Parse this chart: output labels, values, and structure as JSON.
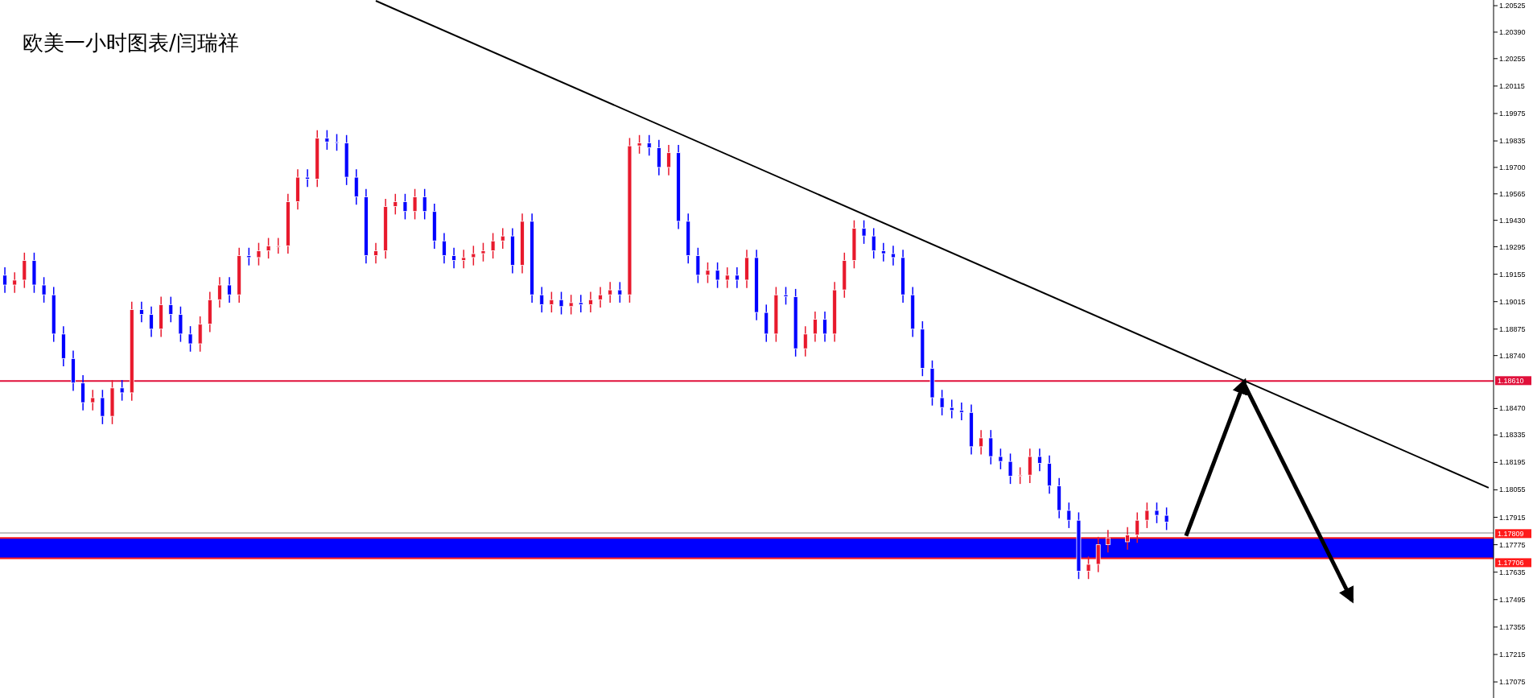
{
  "chart_data": {
    "type": "candlestick",
    "annotations": [
      "欧美一小时图表/闫瑞祥"
    ],
    "categories": [
      null,
      null,
      null,
      null,
      null,
      null,
      null,
      null,
      null,
      null,
      null,
      null,
      null,
      null,
      null,
      null,
      null,
      null,
      null,
      null,
      null,
      null,
      null,
      null,
      null,
      null,
      null,
      null,
      null,
      null,
      null,
      null,
      null,
      null,
      null,
      null,
      null,
      null,
      null,
      null,
      null,
      null,
      null,
      null,
      null,
      null,
      null,
      null,
      null,
      null,
      null,
      null,
      null,
      null,
      null,
      null,
      null,
      null,
      null,
      null,
      null,
      null,
      null,
      null,
      null,
      null,
      null,
      null,
      null,
      null,
      null,
      null,
      null,
      null,
      null,
      null,
      null,
      null,
      null,
      null,
      null,
      null,
      null,
      null,
      null,
      null,
      null,
      null,
      null,
      null,
      null,
      null,
      null,
      null,
      null,
      null,
      null,
      null,
      null,
      null,
      null,
      null,
      null,
      null,
      null,
      null,
      null,
      null,
      null,
      null,
      null,
      null,
      null,
      null,
      null,
      null,
      null,
      null,
      null,
      null,
      null,
      null,
      null,
      null,
      null,
      null,
      null,
      null,
      null,
      null,
      null,
      null,
      null,
      null,
      null,
      null,
      null,
      null,
      null,
      null,
      null,
      null,
      null,
      null,
      null,
      null,
      null,
      null,
      null,
      null,
      null,
      null,
      null
    ],
    "colors": [
      "#0000ff",
      "#e8192c",
      "#e8192c",
      "#0000ff",
      "#0000ff",
      "#0000ff",
      "#0000ff",
      "#0000ff",
      "#0000ff",
      "#e8192c",
      "#0000ff",
      "#e8192c",
      "#0000ff",
      "#e8192c",
      "#0000ff",
      "#0000ff",
      "#e8192c",
      "#0000ff",
      "#0000ff",
      "#0000ff",
      "#e8192c",
      "#e8192c",
      "#e8192c",
      "#0000ff",
      "#e8192c",
      "#0000ff",
      "#e8192c",
      "#e8192c",
      "#e8192c",
      "#e8192c",
      "#e8192c",
      "#0000ff",
      "#e8192c",
      "#0000ff",
      "#0000ff",
      "#0000ff",
      "#0000ff",
      "#0000ff",
      "#e8192c",
      "#e8192c",
      "#e8192c",
      "#0000ff",
      "#e8192c",
      "#0000ff",
      "#0000ff",
      "#0000ff",
      "#0000ff",
      "#e8192c",
      "#e8192c",
      "#e8192c",
      "#e8192c",
      "#e8192c",
      "#0000ff",
      "#e8192c",
      "#0000ff",
      "#0000ff",
      "#e8192c",
      "#0000ff",
      "#e8192c",
      "#0000ff",
      "#e8192c",
      "#e8192c",
      "#e8192c",
      "#0000ff",
      "#e8192c",
      "#e8192c",
      "#0000ff",
      "#0000ff",
      "#e8192c",
      "#0000ff",
      "#0000ff",
      "#0000ff",
      "#e8192c",
      "#0000ff",
      "#e8192c",
      "#0000ff",
      "#e8192c",
      "#0000ff",
      "#0000ff",
      "#e8192c",
      "#0000ff",
      "#0000ff",
      "#e8192c",
      "#e8192c",
      "#0000ff",
      "#e8192c",
      "#e8192c",
      "#e8192c",
      "#0000ff",
      "#0000ff",
      "#0000ff",
      "#0000ff",
      "#0000ff",
      "#0000ff",
      "#0000ff",
      "#0000ff",
      "#0000ff",
      "#0000ff",
      "#0000ff",
      "#0000ff",
      "#e8192c",
      "#0000ff",
      "#0000ff",
      "#0000ff",
      "#e8192c",
      "#e8192c",
      "#0000ff",
      "#0000ff",
      "#0000ff",
      "#0000ff",
      "#0000ff",
      "#e8192c",
      "#e8192c",
      "#e8192c",
      null,
      "#e8192c",
      "#e8192c",
      "#e8192c",
      "#0000ff",
      "#0000ff",
      null,
      null,
      null,
      null,
      null,
      null,
      null,
      null,
      null,
      null,
      null,
      null,
      null,
      null,
      null,
      null,
      null,
      null,
      null,
      null,
      null,
      null,
      null,
      null,
      null,
      null,
      null,
      null,
      null,
      null,
      null,
      null,
      null
    ],
    "ohlc": [
      [
        1.1915,
        1.1919,
        1.1906,
        1.191
      ],
      [
        1.191,
        1.19165,
        1.1906,
        1.19125
      ],
      [
        1.19125,
        1.19265,
        1.19085,
        1.19225
      ],
      [
        1.19225,
        1.19265,
        1.1906,
        1.191
      ],
      [
        1.191,
        1.1914,
        1.1901,
        1.1905
      ],
      [
        1.1905,
        1.1909,
        1.1881,
        1.1885
      ],
      [
        1.1885,
        1.1889,
        1.18685,
        1.18725
      ],
      [
        1.18725,
        1.18765,
        1.1856,
        1.186
      ],
      [
        1.186,
        1.1864,
        1.1846,
        1.185
      ],
      [
        1.185,
        1.18565,
        1.1846,
        1.18525
      ],
      [
        1.18525,
        1.18565,
        1.1839,
        1.1843
      ],
      [
        1.1843,
        1.18615,
        1.1839,
        1.18575
      ],
      [
        1.18575,
        1.18615,
        1.1851,
        1.1855
      ],
      [
        1.1855,
        1.19015,
        1.1851,
        1.18975
      ],
      [
        1.18975,
        1.19015,
        1.1891,
        1.1895
      ],
      [
        1.1895,
        1.1899,
        1.18835,
        1.18875
      ],
      [
        1.18875,
        1.1904,
        1.18835,
        1.19
      ],
      [
        1.19,
        1.1904,
        1.1891,
        1.1895
      ],
      [
        1.1895,
        1.1899,
        1.1881,
        1.1885
      ],
      [
        1.1885,
        1.1889,
        1.1876,
        1.188
      ],
      [
        1.188,
        1.1894,
        1.1876,
        1.189
      ],
      [
        1.189,
        1.19065,
        1.1886,
        1.19025
      ],
      [
        1.19025,
        1.1914,
        1.18985,
        1.191
      ],
      [
        1.191,
        1.1914,
        1.1901,
        1.1905
      ],
      [
        1.1905,
        1.1929,
        1.1901,
        1.1925
      ],
      [
        1.1925,
        1.1929,
        1.192,
        1.1924
      ],
      [
        1.1924,
        1.19315,
        1.192,
        1.19275
      ],
      [
        1.19275,
        1.1934,
        1.19235,
        1.193
      ],
      [
        1.193,
        1.1934,
        1.1926,
        1.193
      ],
      [
        1.193,
        1.19565,
        1.1926,
        1.19525
      ],
      [
        1.19525,
        1.1969,
        1.19485,
        1.1965
      ],
      [
        1.1965,
        1.1969,
        1.196,
        1.1964
      ],
      [
        1.1964,
        1.1989,
        1.196,
        1.1985
      ],
      [
        1.1985,
        1.1989,
        1.1979,
        1.1983
      ],
      [
        1.1983,
        1.1987,
        1.19785,
        1.19825
      ],
      [
        1.19825,
        1.19865,
        1.1961,
        1.1965
      ],
      [
        1.1965,
        1.1969,
        1.1951,
        1.1955
      ],
      [
        1.1955,
        1.1959,
        1.1921,
        1.1925
      ],
      [
        1.1925,
        1.19315,
        1.1921,
        1.19275
      ],
      [
        1.19275,
        1.1954,
        1.19235,
        1.195
      ],
      [
        1.195,
        1.19565,
        1.1946,
        1.19525
      ],
      [
        1.19525,
        1.19565,
        1.19435,
        1.19475
      ],
      [
        1.19475,
        1.1959,
        1.19435,
        1.1955
      ],
      [
        1.1955,
        1.1959,
        1.19435,
        1.19475
      ],
      [
        1.19475,
        1.19515,
        1.19285,
        1.19325
      ],
      [
        1.19325,
        1.19365,
        1.1921,
        1.1925
      ],
      [
        1.1925,
        1.1929,
        1.19185,
        1.19225
      ],
      [
        1.19225,
        1.1928,
        1.19185,
        1.1924
      ],
      [
        1.1924,
        1.193,
        1.192,
        1.1926
      ],
      [
        1.1926,
        1.19315,
        1.1922,
        1.19275
      ],
      [
        1.19275,
        1.19365,
        1.19235,
        1.19325
      ],
      [
        1.19325,
        1.1939,
        1.19285,
        1.1935
      ],
      [
        1.1935,
        1.1939,
        1.1916,
        1.192
      ],
      [
        1.192,
        1.19465,
        1.1916,
        1.19425
      ],
      [
        1.19425,
        1.19465,
        1.1901,
        1.1905
      ],
      [
        1.1905,
        1.1909,
        1.1896,
        1.19
      ],
      [
        1.19,
        1.19065,
        1.1896,
        1.19025
      ],
      [
        1.19025,
        1.19065,
        1.1895,
        1.1899
      ],
      [
        1.1899,
        1.1905,
        1.1895,
        1.1901
      ],
      [
        1.1901,
        1.1905,
        1.1896,
        1.19
      ],
      [
        1.19,
        1.19065,
        1.1896,
        1.19025
      ],
      [
        1.19025,
        1.1909,
        1.18985,
        1.1905
      ],
      [
        1.1905,
        1.19115,
        1.1901,
        1.19075
      ],
      [
        1.19075,
        1.19115,
        1.1901,
        1.1905
      ],
      [
        1.1905,
        1.1985,
        1.1901,
        1.1981
      ],
      [
        1.1981,
        1.19865,
        1.1977,
        1.19825
      ],
      [
        1.19825,
        1.19865,
        1.1976,
        1.198
      ],
      [
        1.198,
        1.1984,
        1.1966,
        1.197
      ],
      [
        1.197,
        1.19815,
        1.1966,
        1.19775
      ],
      [
        1.19775,
        1.19815,
        1.19385,
        1.19425
      ],
      [
        1.19425,
        1.19465,
        1.1921,
        1.1925
      ],
      [
        1.1925,
        1.1929,
        1.1911,
        1.1915
      ],
      [
        1.1915,
        1.19215,
        1.1911,
        1.19175
      ],
      [
        1.19175,
        1.19215,
        1.19085,
        1.19125
      ],
      [
        1.19125,
        1.1919,
        1.19085,
        1.1915
      ],
      [
        1.1915,
        1.1919,
        1.19085,
        1.19125
      ],
      [
        1.19125,
        1.1928,
        1.19085,
        1.1924
      ],
      [
        1.1924,
        1.1928,
        1.1892,
        1.1896
      ],
      [
        1.1896,
        1.19,
        1.1881,
        1.1885
      ],
      [
        1.1885,
        1.1909,
        1.1881,
        1.1905
      ],
      [
        1.1905,
        1.1909,
        1.19,
        1.1904
      ],
      [
        1.1904,
        1.1908,
        1.18735,
        1.18775
      ],
      [
        1.18775,
        1.1889,
        1.18735,
        1.1885
      ],
      [
        1.1885,
        1.18965,
        1.1881,
        1.18925
      ],
      [
        1.18925,
        1.18965,
        1.1881,
        1.1885
      ],
      [
        1.1885,
        1.19115,
        1.1881,
        1.19075
      ],
      [
        1.19075,
        1.19265,
        1.19035,
        1.19225
      ],
      [
        1.19225,
        1.1943,
        1.19185,
        1.1939
      ],
      [
        1.1939,
        1.1943,
        1.1931,
        1.1935
      ],
      [
        1.1935,
        1.1939,
        1.19235,
        1.19275
      ],
      [
        1.19275,
        1.19315,
        1.1922,
        1.1926
      ],
      [
        1.1926,
        1.193,
        1.192,
        1.1924
      ],
      [
        1.1924,
        1.1928,
        1.1901,
        1.1905
      ],
      [
        1.1905,
        1.1909,
        1.18835,
        1.18875
      ],
      [
        1.18875,
        1.18915,
        1.18635,
        1.18675
      ],
      [
        1.18675,
        1.18715,
        1.18485,
        1.18525
      ],
      [
        1.18525,
        1.18565,
        1.18435,
        1.18475
      ],
      [
        1.18475,
        1.18515,
        1.1842,
        1.1846
      ],
      [
        1.1846,
        1.185,
        1.1841,
        1.1845
      ],
      [
        1.1845,
        1.1849,
        1.18235,
        1.18275
      ],
      [
        1.18275,
        1.1836,
        1.18235,
        1.1832
      ],
      [
        1.1832,
        1.1836,
        1.18185,
        1.18225
      ],
      [
        1.18225,
        1.18265,
        1.1816,
        1.182
      ],
      [
        1.182,
        1.1824,
        1.18085,
        1.18125
      ],
      [
        1.18125,
        1.1817,
        1.18085,
        1.1813
      ],
      [
        1.1813,
        1.18265,
        1.1809,
        1.18225
      ],
      [
        1.18225,
        1.18265,
        1.1815,
        1.1819
      ],
      [
        1.1819,
        1.1823,
        1.18035,
        1.18075
      ],
      [
        1.18075,
        1.18115,
        1.1791,
        1.1795
      ],
      [
        1.1795,
        1.1799,
        1.1786,
        1.179
      ],
      [
        1.179,
        1.1794,
        1.176,
        1.1764
      ],
      [
        1.1764,
        1.17715,
        1.176,
        1.17675
      ],
      [
        1.17675,
        1.17815,
        1.17635,
        1.17775
      ],
      [
        1.17775,
        1.1785,
        1.17735,
        1.1781
      ],
      null,
      [
        1.1779,
        1.17865,
        1.1775,
        1.17825
      ],
      [
        1.17825,
        1.1794,
        1.17785,
        1.179
      ],
      [
        1.179,
        1.1799,
        1.1786,
        1.1795
      ],
      [
        1.1795,
        1.1799,
        1.17885,
        1.17925
      ],
      [
        1.17925,
        1.17965,
        1.1785,
        1.1789
      ],
      null,
      null,
      null,
      null,
      null,
      null,
      null,
      null,
      null,
      null,
      null,
      null,
      null,
      null,
      null,
      null,
      null,
      null,
      null,
      null,
      null,
      null,
      null,
      null,
      null,
      null,
      null,
      null,
      null,
      null,
      null,
      null,
      null
    ],
    "series": [
      {
        "type": "line",
        "color": "#000000",
        "values": [
          null,
          null,
          null,
          null,
          null,
          null,
          null,
          null,
          null,
          null,
          null,
          null,
          null,
          null,
          null,
          null,
          null,
          null,
          null,
          null,
          null,
          null,
          null,
          null,
          null,
          null,
          null,
          null,
          null,
          null,
          null,
          null,
          null,
          null,
          null,
          null,
          null,
          null,
          1.2055,
          null,
          null,
          null,
          null,
          null,
          null,
          null,
          null,
          null,
          null,
          null,
          null,
          null,
          null,
          null,
          null,
          null,
          null,
          null,
          null,
          null,
          null,
          null,
          null,
          null,
          null,
          null,
          null,
          null,
          null,
          null,
          null,
          null,
          null,
          null,
          null,
          null,
          null,
          null,
          null,
          null,
          null,
          null,
          null,
          null,
          null,
          null,
          null,
          null,
          null,
          null,
          null,
          null,
          null,
          null,
          null,
          null,
          null,
          null,
          null,
          null,
          null,
          null,
          null,
          null,
          null,
          null,
          null,
          null,
          null,
          null,
          null,
          null,
          null,
          null,
          null,
          null,
          null,
          null,
          null,
          null,
          null,
          null,
          null,
          null,
          null,
          null,
          null,
          null,
          null,
          null,
          null,
          null,
          null,
          null,
          null,
          null,
          null,
          null,
          null,
          null,
          null,
          null,
          null,
          null,
          null,
          null,
          null,
          null,
          null,
          null,
          null,
          null,
          1.18066
        ]
      },
      {
        "type": "line",
        "color": "#000000",
        "values": [
          null,
          null,
          null,
          null,
          null,
          null,
          null,
          null,
          null,
          null,
          null,
          null,
          null,
          null,
          null,
          null,
          null,
          null,
          null,
          null,
          null,
          null,
          null,
          null,
          null,
          null,
          null,
          null,
          null,
          null,
          null,
          null,
          null,
          null,
          null,
          null,
          null,
          null,
          null,
          null,
          null,
          null,
          null,
          null,
          null,
          null,
          null,
          null,
          null,
          null,
          null,
          null,
          null,
          null,
          null,
          null,
          null,
          null,
          null,
          null,
          null,
          null,
          null,
          null,
          null,
          null,
          null,
          null,
          null,
          null,
          null,
          null,
          null,
          null,
          null,
          null,
          null,
          null,
          null,
          null,
          null,
          null,
          null,
          null,
          null,
          null,
          null,
          null,
          null,
          null,
          null,
          null,
          null,
          null,
          null,
          null,
          null,
          null,
          null,
          null,
          null,
          null,
          null,
          null,
          null,
          null,
          null,
          null,
          null,
          null,
          null,
          null,
          null,
          null,
          null,
          null,
          null,
          null,
          null,
          null,
          null,
          1.1782,
          null,
          null,
          null,
          null,
          null,
          1.1861,
          null,
          null,
          null,
          null,
          null,
          null,
          null,
          null,
          null,
          null,
          null,
          null,
          null,
          null,
          null,
          null,
          null,
          null,
          null,
          null,
          null,
          null,
          null,
          null,
          null
        ]
      },
      {
        "type": "line",
        "color": "#000000",
        "values": [
          null,
          null,
          null,
          null,
          null,
          null,
          null,
          null,
          null,
          null,
          null,
          null,
          null,
          null,
          null,
          null,
          null,
          null,
          null,
          null,
          null,
          null,
          null,
          null,
          null,
          null,
          null,
          null,
          null,
          null,
          null,
          null,
          null,
          null,
          null,
          null,
          null,
          null,
          null,
          null,
          null,
          null,
          null,
          null,
          null,
          null,
          null,
          null,
          null,
          null,
          null,
          null,
          null,
          null,
          null,
          null,
          null,
          null,
          null,
          null,
          null,
          null,
          null,
          null,
          null,
          null,
          null,
          null,
          null,
          null,
          null,
          null,
          null,
          null,
          null,
          null,
          null,
          null,
          null,
          null,
          null,
          null,
          null,
          null,
          null,
          null,
          null,
          null,
          null,
          null,
          null,
          null,
          null,
          null,
          null,
          null,
          null,
          null,
          null,
          null,
          null,
          null,
          null,
          null,
          null,
          null,
          null,
          null,
          null,
          null,
          null,
          null,
          null,
          null,
          null,
          null,
          null,
          null,
          null,
          null,
          null,
          null,
          null,
          null,
          null,
          null,
          null,
          1.1859,
          null,
          null,
          null,
          null,
          null,
          null,
          null,
          null,
          null,
          null,
          1.1749,
          null,
          null,
          null,
          null,
          null,
          null,
          null,
          null,
          null,
          null,
          null,
          null,
          null,
          null
        ]
      }
    ],
    "ylim": [
      1.16993,
      1.20554
    ],
    "yticks": [
      1.20525,
      {
        "value": 1.2039,
        "label": "1.20390"
      },
      1.20255,
      1.20115,
      1.19975,
      1.19835,
      {
        "value": 1.197,
        "label": "1.19700"
      },
      1.19565,
      {
        "value": 1.1943,
        "label": "1.19430"
      },
      1.19295,
      1.19155,
      1.19015,
      1.18875,
      {
        "value": 1.1874,
        "label": "1.18740"
      },
      {
        "value": 1.1847,
        "label": "1.18470"
      },
      1.18335,
      1.18195,
      1.18055,
      1.17915,
      1.17775,
      1.17635,
      1.17495,
      1.17355,
      1.17215,
      1.17075
    ],
    "tick_labels": "y",
    "grid": false,
    "bands": [
      {
        "axis": "y",
        "from": 1.17706,
        "to": 1.17809,
        "color": "#0000ff"
      }
    ],
    "ref_lines": [
      {
        "axis": "y",
        "value": 1.1861,
        "label": "1.18610",
        "color": "#e0103a"
      },
      {
        "axis": "y",
        "value": 1.17809,
        "label": "1.17809",
        "color": "#ff1a1a"
      },
      {
        "axis": "y",
        "value": 1.17706,
        "label": "1.17706",
        "color": "#ff1a1a"
      },
      {
        "axis": "y",
        "value": 1.17835,
        "color": "#c0c0c0"
      }
    ]
  }
}
